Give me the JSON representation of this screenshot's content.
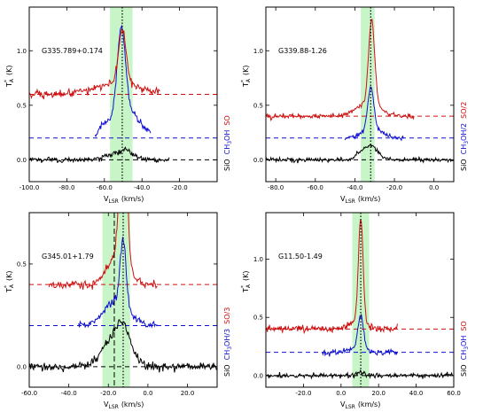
{
  "colors": {
    "sio": "#000000",
    "ch3oh": "#1010d0",
    "so": "#d01010",
    "band": "#c8f5c8"
  },
  "chart_data": [
    {
      "type": "line",
      "title": "G335.789+0.174",
      "xlim": [
        -100,
        0
      ],
      "ylim": [
        -0.2,
        1.4
      ],
      "xticks": [
        -100,
        -80,
        -60,
        -40,
        -20
      ],
      "xtick_labels": [
        "-100.0",
        "-80.0",
        "-60.0",
        "-40.0",
        "-20.0"
      ],
      "yticks": [
        0,
        0.5,
        1.0
      ],
      "ytick_labels": [
        "0.0",
        "0.5",
        "1.0"
      ],
      "xlabel": "V",
      "xlabel_sub": "LSR",
      "xlabel_unit": "(km/s)",
      "ylabel": "T",
      "ylabel_sup": "*",
      "ylabel_sub": "A",
      "ylabel_unit": "(K)",
      "vline": -50.5,
      "band": [
        -57,
        -45
      ],
      "series_labels": [
        {
          "text": "SiO",
          "color": "sio"
        },
        {
          "text": "CH",
          "sub": "3",
          "tail": "OH",
          "color": "ch3oh"
        },
        {
          "text": "SO",
          "color": "so"
        }
      ],
      "series": [
        {
          "key": "sio",
          "color": "sio",
          "baseline": 0.0,
          "x_range": [
            -100,
            -25
          ],
          "noise": 0.012,
          "peaks": [
            {
              "c": -51,
              "a": 0.07,
              "w": 6
            },
            {
              "c": -48,
              "a": 0.03,
              "w": 2
            }
          ]
        },
        {
          "key": "ch3oh",
          "color": "ch3oh",
          "baseline": 0.2,
          "x_range": [
            -65,
            -35
          ],
          "noise": 0.015,
          "peaks": [
            {
              "c": -51,
              "a": 0.78,
              "w": 2.2
            },
            {
              "c": -48,
              "a": 0.25,
              "w": 7
            },
            {
              "c": -60,
              "a": 0.08,
              "w": 3
            }
          ]
        },
        {
          "key": "so",
          "color": "so",
          "baseline": 0.6,
          "x_range": [
            -100,
            -30
          ],
          "noise": 0.018,
          "peaks": [
            {
              "c": -50.5,
              "a": 0.5,
              "w": 2.0
            },
            {
              "c": -52,
              "a": 0.1,
              "w": 12
            }
          ]
        }
      ]
    },
    {
      "type": "line",
      "title": "G339.88-1.26",
      "xlim": [
        -85,
        10
      ],
      "ylim": [
        -0.2,
        1.4
      ],
      "xticks": [
        -80,
        -60,
        -40,
        -20,
        0
      ],
      "xtick_labels": [
        "-80.0",
        "-60.0",
        "-40.0",
        "-20.0",
        "0.0"
      ],
      "yticks": [
        0,
        0.5,
        1.0
      ],
      "ytick_labels": [
        "0.0",
        "0.5",
        "1.0"
      ],
      "xlabel": "V",
      "xlabel_sub": "LSR",
      "xlabel_unit": "(km/s)",
      "ylabel": "T",
      "ylabel_sup": "*",
      "ylabel_sub": "A",
      "ylabel_unit": "(K)",
      "vline": -32,
      "band": [
        -37,
        -30
      ],
      "series_labels": [
        {
          "text": "SiO",
          "color": "sio"
        },
        {
          "text": "CH",
          "sub": "3",
          "tail": "OH/2",
          "color": "ch3oh"
        },
        {
          "text": "SO/2",
          "color": "so"
        }
      ],
      "series": [
        {
          "key": "sio",
          "color": "sio",
          "baseline": 0.0,
          "x_range": [
            -85,
            10
          ],
          "noise": 0.01,
          "peaks": [
            {
              "c": -34,
              "a": 0.1,
              "w": 4
            },
            {
              "c": -30,
              "a": 0.05,
              "w": 3
            }
          ]
        },
        {
          "key": "ch3oh",
          "color": "ch3oh",
          "baseline": 0.2,
          "x_range": [
            -45,
            -15
          ],
          "noise": 0.01,
          "peaks": [
            {
              "c": -32,
              "a": 0.38,
              "w": 1.6
            },
            {
              "c": -31,
              "a": 0.08,
              "w": 5
            }
          ]
        },
        {
          "key": "so",
          "color": "so",
          "baseline": 0.4,
          "x_range": [
            -85,
            -10
          ],
          "noise": 0.012,
          "peaks": [
            {
              "c": -31.5,
              "a": 0.78,
              "w": 1.5
            },
            {
              "c": -33,
              "a": 0.12,
              "w": 6
            }
          ]
        }
      ]
    },
    {
      "type": "line",
      "title": "G345.01+1.79",
      "xlim": [
        -60,
        35
      ],
      "ylim": [
        -0.1,
        0.75
      ],
      "xticks": [
        -60,
        -40,
        -20,
        0,
        20
      ],
      "xtick_labels": [
        "-60.0",
        "-40.0",
        "-20.0",
        "0.0",
        "20.0"
      ],
      "yticks": [
        0,
        0.5
      ],
      "ytick_labels": [
        "0.0",
        "0.5"
      ],
      "xlabel": "V",
      "xlabel_sub": "LSR",
      "xlabel_unit": "(km/s)",
      "ylabel": "T",
      "ylabel_sup": "*",
      "ylabel_sub": "A",
      "ylabel_unit": "(K)",
      "vline": -12.5,
      "vline2": -17,
      "band": [
        -23,
        -9
      ],
      "series_labels": [
        {
          "text": "SiO",
          "color": "sio"
        },
        {
          "text": "CH",
          "sub": "3",
          "tail": "OH/3",
          "color": "ch3oh"
        },
        {
          "text": "SO/3",
          "color": "so"
        }
      ],
      "series": [
        {
          "key": "sio",
          "color": "sio",
          "baseline": 0.0,
          "x_range": [
            -60,
            35
          ],
          "noise": 0.01,
          "peaks": [
            {
              "c": -16,
              "a": 0.16,
              "w": 6
            },
            {
              "c": -12,
              "a": 0.08,
              "w": 3
            }
          ]
        },
        {
          "key": "ch3oh",
          "color": "ch3oh",
          "baseline": 0.2,
          "x_range": [
            -35,
            5
          ],
          "noise": 0.01,
          "peaks": [
            {
              "c": -12.5,
              "a": 0.32,
              "w": 1.5
            },
            {
              "c": -16,
              "a": 0.12,
              "w": 6
            }
          ]
        },
        {
          "key": "so",
          "color": "so",
          "baseline": 0.4,
          "x_range": [
            -50,
            5
          ],
          "noise": 0.01,
          "peaks": [
            {
              "c": -12.5,
              "a": 0.95,
              "w": 1.6
            },
            {
              "c": -15,
              "a": 0.15,
              "w": 5
            }
          ]
        }
      ]
    },
    {
      "type": "line",
      "title": "G11.50-1.49",
      "xlim": [
        -40,
        60
      ],
      "ylim": [
        -0.1,
        1.4
      ],
      "xticks": [
        -20,
        0,
        20,
        40,
        60
      ],
      "xtick_labels": [
        "-20.0",
        "0.0",
        "20.0",
        "40.0",
        "60.0"
      ],
      "yticks": [
        0,
        0.5,
        1.0
      ],
      "ytick_labels": [
        "0.0",
        "0.5",
        "1.0"
      ],
      "xlabel": "V",
      "xlabel_sub": "LSR",
      "xlabel_unit": "(km/s)",
      "ylabel": "T",
      "ylabel_sup": "*",
      "ylabel_sub": "A",
      "ylabel_unit": "(K)",
      "vline": 10.5,
      "band": [
        6,
        15
      ],
      "series_labels": [
        {
          "text": "SiO",
          "color": "sio"
        },
        {
          "text": "CH",
          "sub": "3",
          "tail": "OH",
          "color": "ch3oh"
        },
        {
          "text": "SO",
          "color": "so"
        }
      ],
      "series": [
        {
          "key": "sio",
          "color": "sio",
          "baseline": 0.0,
          "x_range": [
            -40,
            60
          ],
          "noise": 0.01,
          "peaks": [
            {
              "c": 10.5,
              "a": 0.03,
              "w": 2
            }
          ]
        },
        {
          "key": "ch3oh",
          "color": "ch3oh",
          "baseline": 0.2,
          "x_range": [
            -10,
            30
          ],
          "noise": 0.012,
          "peaks": [
            {
              "c": 10.5,
              "a": 0.28,
              "w": 1.4
            },
            {
              "c": 9,
              "a": 0.04,
              "w": 4
            }
          ]
        },
        {
          "key": "so",
          "color": "so",
          "baseline": 0.4,
          "x_range": [
            -40,
            30
          ],
          "noise": 0.015,
          "peaks": [
            {
              "c": 10.5,
              "a": 0.88,
              "w": 1.2
            },
            {
              "c": 9.5,
              "a": 0.08,
              "w": 4
            }
          ]
        }
      ]
    }
  ]
}
